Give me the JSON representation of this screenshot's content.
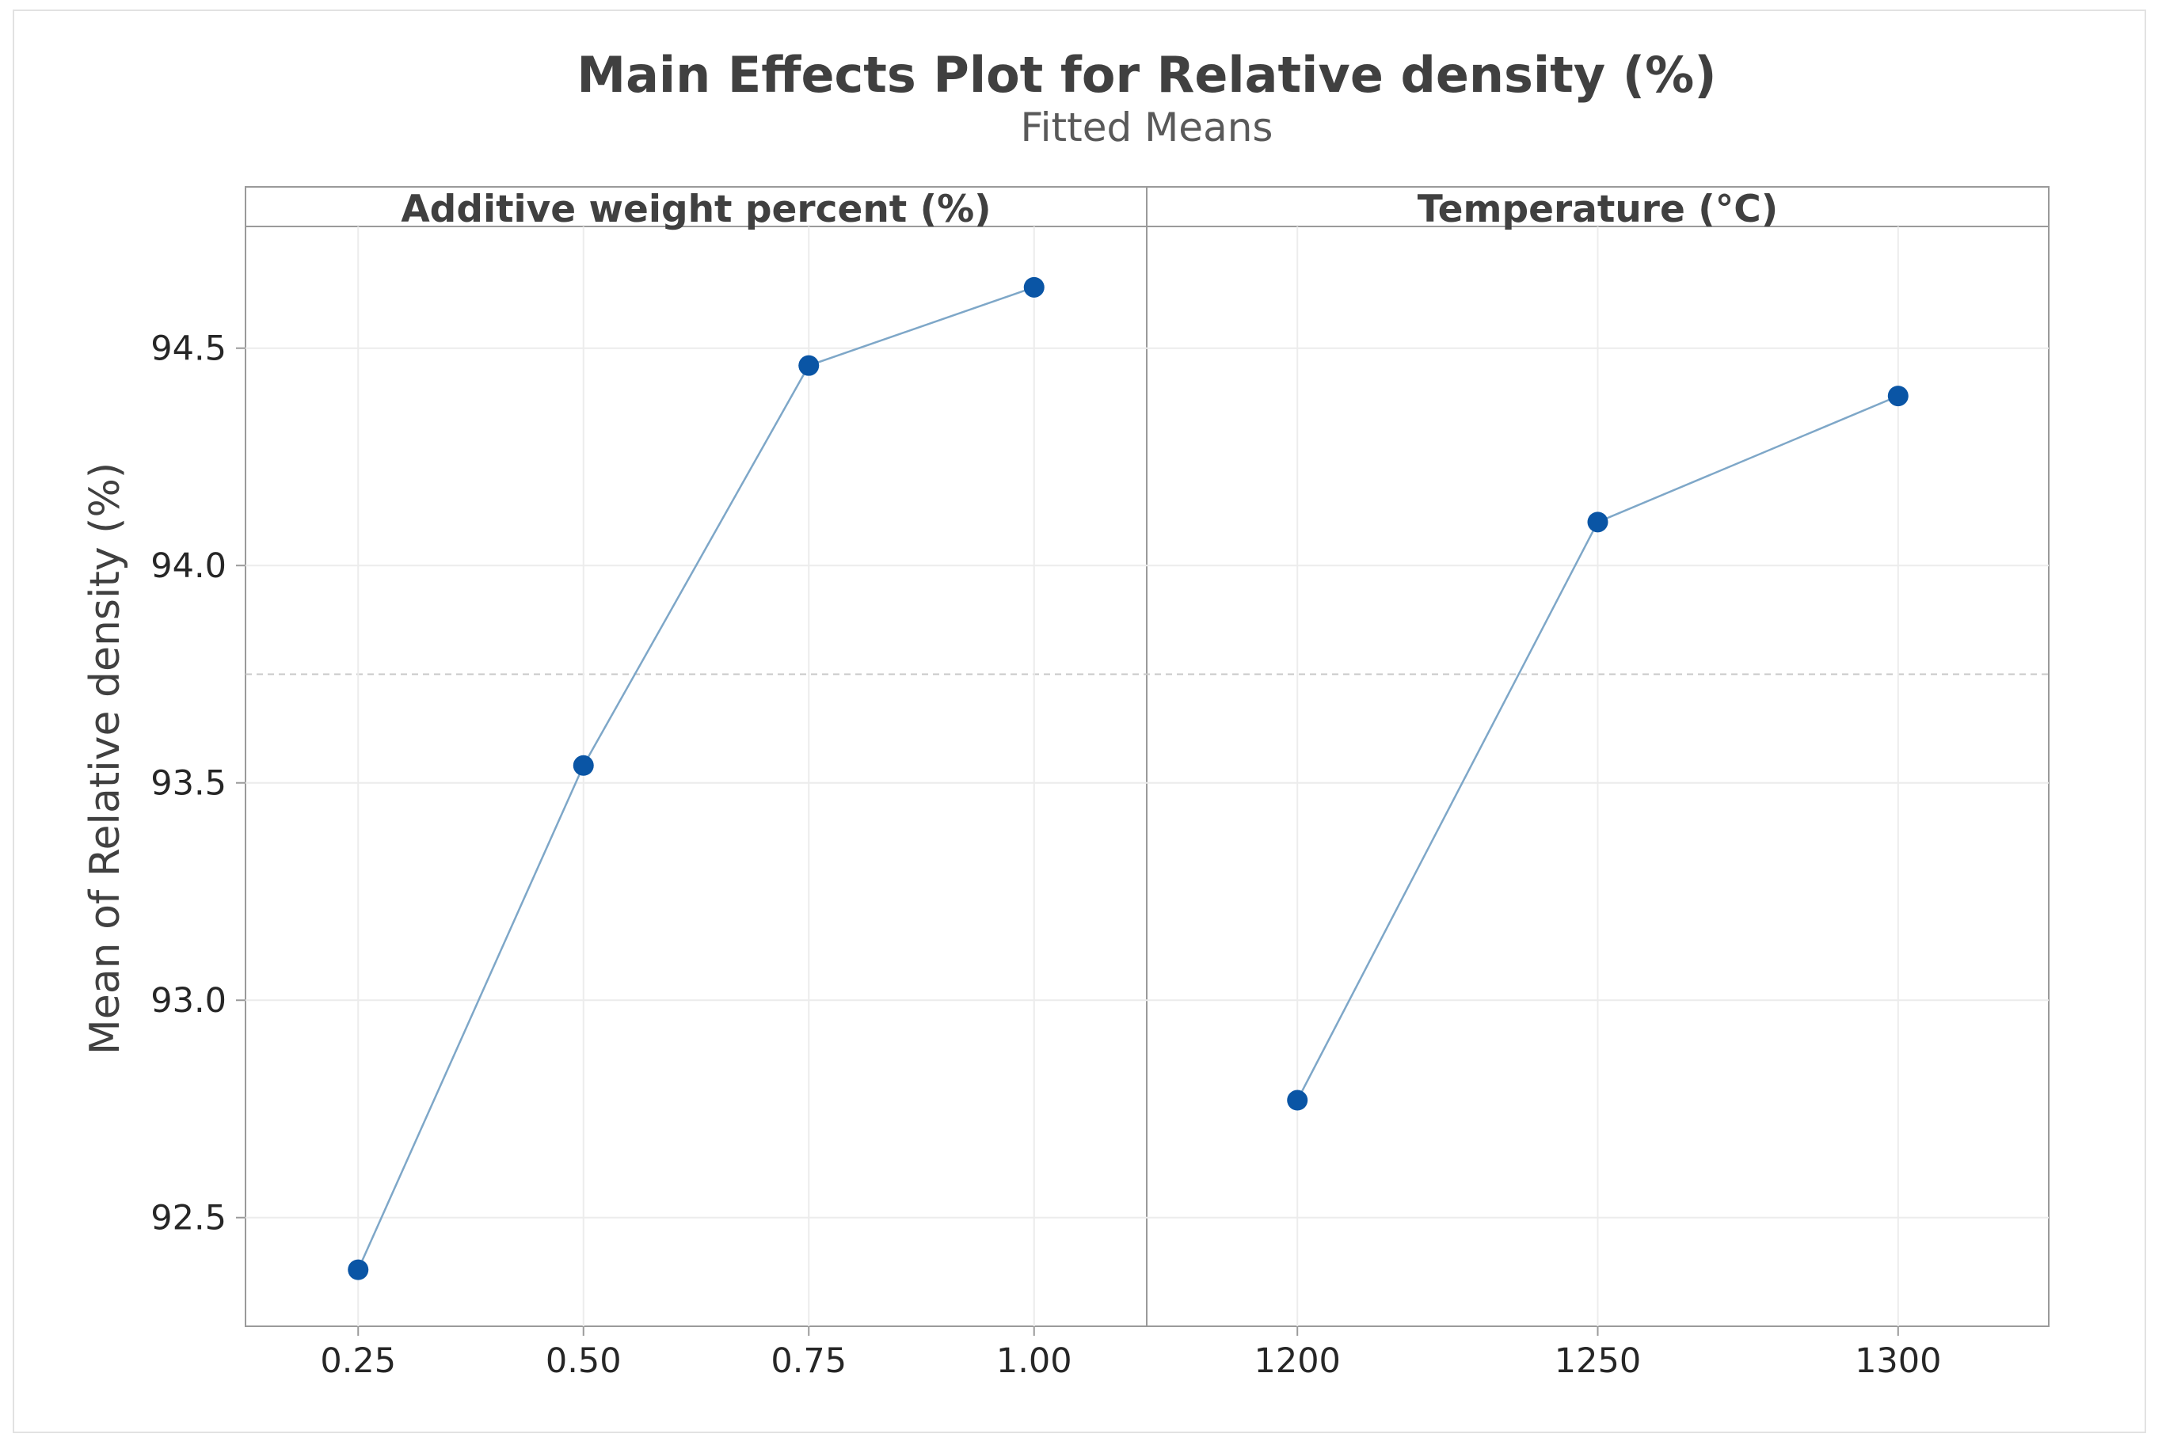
{
  "chart_data": {
    "type": "line",
    "title": "Main Effects Plot for Relative density (%)",
    "subtitle": "Fitted Means",
    "ylabel": "Mean of Relative density (%)",
    "ylim": [
      92.25,
      94.78
    ],
    "yticks": [
      92.5,
      93.0,
      93.5,
      94.0,
      94.5
    ],
    "ytick_labels": [
      "92.5",
      "93.0",
      "93.5",
      "94.0",
      "94.5"
    ],
    "reference_mean": 93.75,
    "marker_color": "#0a55a5",
    "line_color": "#7ea7c8",
    "panels": [
      {
        "name": "Additive weight percent (%)",
        "categories": [
          "0.25",
          "0.50",
          "0.75",
          "1.00"
        ],
        "values": [
          92.38,
          93.54,
          94.46,
          94.64
        ]
      },
      {
        "name": "Temperature (°C)",
        "categories": [
          "1200",
          "1250",
          "1300"
        ],
        "values": [
          92.77,
          94.1,
          94.39
        ]
      }
    ]
  }
}
